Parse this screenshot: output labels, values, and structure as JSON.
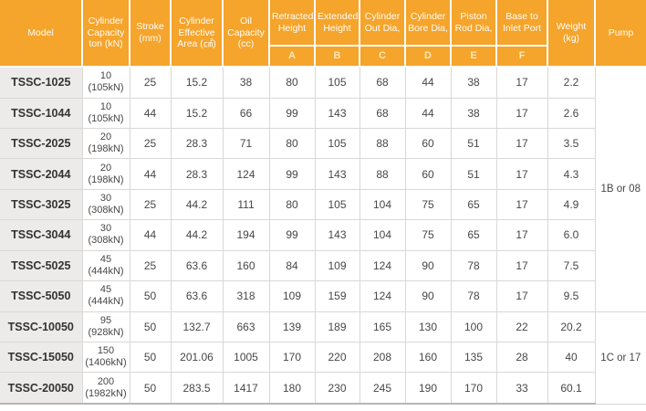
{
  "colors": {
    "header_bg": "#F5A42C",
    "header_text": "#FFFEF8",
    "letter_text": "#FBE8B8",
    "model_column_bg": "#EDEBE9",
    "grid_line": "#DAD8D6",
    "body_text": "#474747"
  },
  "table": {
    "header": {
      "model": "Model",
      "capacity": "Cylinder Capacity ton (kN)",
      "stroke": "Stroke (mm)",
      "effective_area": "Cylinder Effective Area (㎠)",
      "oil_capacity": "Oil Capacity (cc)",
      "retracted_height": "Retracted Height",
      "extended_height": "Extended Height",
      "cylinder_out_dia": "Cylinder Out Dia,",
      "cylinder_bore_dia": "Cylinder Bore Dia,",
      "piston_rod_dia": "Piston Rod Dia,",
      "base_to_inlet_port": "Base to Inlet Port",
      "weight": "Weight (kg)",
      "pump": "Pump",
      "letters": [
        "A",
        "B",
        "C",
        "D",
        "E",
        "F"
      ]
    },
    "rows": [
      {
        "model": "TSSC-1025",
        "capacity_ton": "10",
        "capacity_kn": "(105kN)",
        "stroke": "25",
        "effective_area": "15.2",
        "oil_capacity": "38",
        "a": "80",
        "b": "105",
        "c": "68",
        "d": "44",
        "e": "38",
        "f": "17",
        "weight": "2.2"
      },
      {
        "model": "TSSC-1044",
        "capacity_ton": "10",
        "capacity_kn": "(105kN)",
        "stroke": "44",
        "effective_area": "15.2",
        "oil_capacity": "66",
        "a": "99",
        "b": "143",
        "c": "68",
        "d": "44",
        "e": "38",
        "f": "17",
        "weight": "2.6"
      },
      {
        "model": "TSSC-2025",
        "capacity_ton": "20",
        "capacity_kn": "(198kN)",
        "stroke": "25",
        "effective_area": "28.3",
        "oil_capacity": "71",
        "a": "80",
        "b": "105",
        "c": "88",
        "d": "60",
        "e": "51",
        "f": "17",
        "weight": "3.5"
      },
      {
        "model": "TSSC-2044",
        "capacity_ton": "20",
        "capacity_kn": "(198kN)",
        "stroke": "44",
        "effective_area": "28.3",
        "oil_capacity": "124",
        "a": "99",
        "b": "143",
        "c": "88",
        "d": "60",
        "e": "51",
        "f": "17",
        "weight": "4.3"
      },
      {
        "model": "TSSC-3025",
        "capacity_ton": "30",
        "capacity_kn": "(308kN)",
        "stroke": "25",
        "effective_area": "44.2",
        "oil_capacity": "111",
        "a": "80",
        "b": "105",
        "c": "104",
        "d": "75",
        "e": "65",
        "f": "17",
        "weight": "4.9"
      },
      {
        "model": "TSSC-3044",
        "capacity_ton": "30",
        "capacity_kn": "(308kN)",
        "stroke": "44",
        "effective_area": "44.2",
        "oil_capacity": "194",
        "a": "99",
        "b": "143",
        "c": "104",
        "d": "75",
        "e": "65",
        "f": "17",
        "weight": "6.0"
      },
      {
        "model": "TSSC-5025",
        "capacity_ton": "45",
        "capacity_kn": "(444kN)",
        "stroke": "25",
        "effective_area": "63.6",
        "oil_capacity": "160",
        "a": "84",
        "b": "109",
        "c": "124",
        "d": "90",
        "e": "78",
        "f": "17",
        "weight": "7.5"
      },
      {
        "model": "TSSC-5050",
        "capacity_ton": "45",
        "capacity_kn": "(444kN)",
        "stroke": "50",
        "effective_area": "63.6",
        "oil_capacity": "318",
        "a": "109",
        "b": "159",
        "c": "124",
        "d": "90",
        "e": "78",
        "f": "17",
        "weight": "9.5"
      },
      {
        "model": "TSSC-10050",
        "capacity_ton": "95",
        "capacity_kn": "(928kN)",
        "stroke": "50",
        "effective_area": "132.7",
        "oil_capacity": "663",
        "a": "139",
        "b": "189",
        "c": "165",
        "d": "130",
        "e": "100",
        "f": "22",
        "weight": "20.2"
      },
      {
        "model": "TSSC-15050",
        "capacity_ton": "150",
        "capacity_kn": "(1406kN)",
        "stroke": "50",
        "effective_area": "201.06",
        "oil_capacity": "1005",
        "a": "170",
        "b": "220",
        "c": "208",
        "d": "160",
        "e": "135",
        "f": "28",
        "weight": "40"
      },
      {
        "model": "TSSC-20050",
        "capacity_ton": "200",
        "capacity_kn": "(1982kN)",
        "stroke": "50",
        "effective_area": "283.5",
        "oil_capacity": "1417",
        "a": "180",
        "b": "230",
        "c": "245",
        "d": "190",
        "e": "170",
        "f": "33",
        "weight": "60.1"
      }
    ],
    "pump_groups": [
      {
        "label": "1B or 08",
        "row_start": 0,
        "row_count": 8
      },
      {
        "label": "1C or 17",
        "row_start": 8,
        "row_count": 3
      }
    ]
  }
}
